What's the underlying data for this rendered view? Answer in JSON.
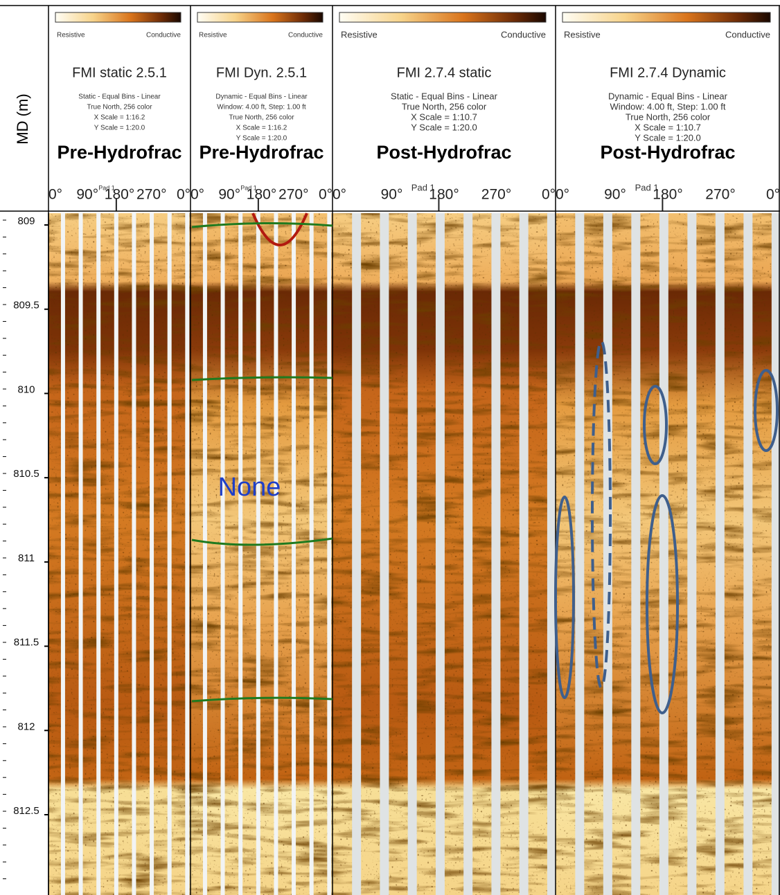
{
  "depth_axis": {
    "label": "MD (m)",
    "ticks": [
      809,
      809.5,
      810,
      810.5,
      811,
      811.5,
      812,
      812.5
    ]
  },
  "panels": [
    {
      "legend_left": "Resistive",
      "legend_right": "Conductive",
      "title": "FMI static 2.5.1",
      "params": [
        "Static - Equal Bins - Linear",
        "True North, 256 color",
        "X Scale = 1:16.2",
        "Y Scale = 1:20.0"
      ],
      "stage": "Pre-Hydrofrac",
      "azimuths": [
        "0°",
        "90°",
        "180°",
        "270°",
        "0°"
      ],
      "pad": "Pad 1"
    },
    {
      "legend_left": "Resistive",
      "legend_right": "Conductive",
      "title": "FMI Dyn. 2.5.1",
      "params": [
        "Dynamic - Equal Bins - Linear",
        "Window:  4.00 ft, Step:  1.00 ft",
        "True North, 256 color",
        "X Scale = 1:16.2",
        "Y Scale = 1:20.0"
      ],
      "stage": "Pre-Hydrofrac",
      "azimuths": [
        "0°",
        "90°",
        "180°",
        "270°",
        "0°"
      ],
      "pad": "Pad 1",
      "annotation": "None"
    },
    {
      "legend_left": "Resistive",
      "legend_right": "Conductive",
      "title": "FMI 2.7.4 static",
      "params": [
        "Static - Equal Bins - Linear",
        "True North, 256 color",
        "X Scale = 1:10.7",
        "Y Scale = 1:20.0"
      ],
      "stage": "Post-Hydrofrac",
      "azimuths": [
        "0°",
        "90°",
        "180°",
        "270°",
        "0°"
      ],
      "pad": "Pad 1"
    },
    {
      "legend_left": "Resistive",
      "legend_right": "Conductive",
      "title": "FMI 2.7.4 Dynamic",
      "params": [
        "Dynamic - Equal Bins - Linear",
        "Window:  4.00 ft, Step:  1.00 ft",
        "True North, 256 color",
        "X Scale = 1:10.7",
        "Y Scale = 1:20.0"
      ],
      "stage": "Post-Hydrofrac",
      "azimuths": [
        "0°",
        "90°",
        "180°",
        "270°",
        "0°"
      ],
      "pad": "Pad 1"
    }
  ]
}
